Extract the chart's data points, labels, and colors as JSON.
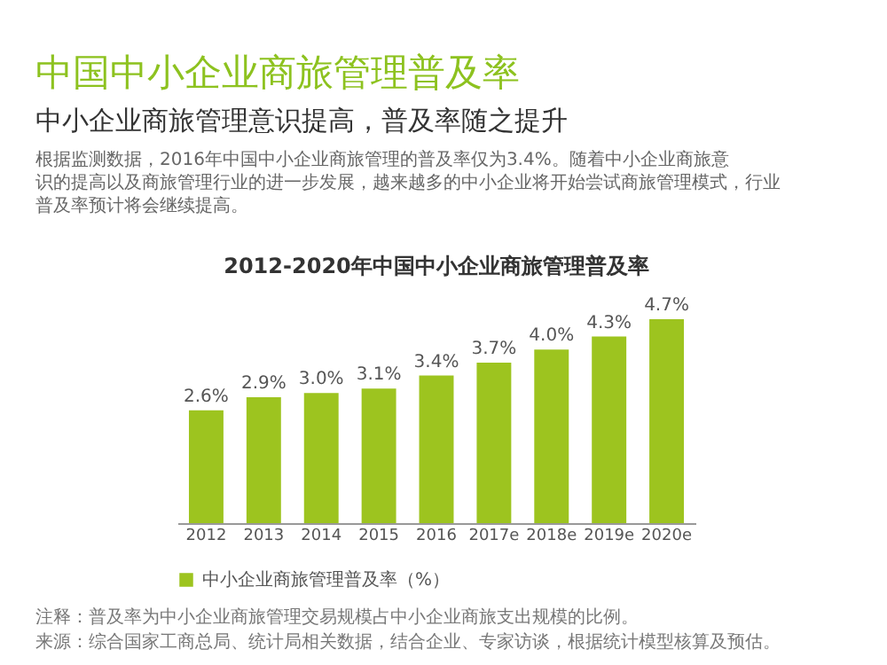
{
  "chart_data": {
    "type": "bar",
    "title": "中国中小企业商旅管理普及率",
    "subtitle": "中小企业商旅管理意识提高，普及率随之提升",
    "annotations": [
      "根据监测数据，2016年中国中小企业商旅管理的普及率仅为3.4%。随着中小企业商旅意识的提高以及商旅管理行业的进一步发展，越来越多的中小企业将开始尝试商旅管理模式，行业普及率预计将会继续提高。",
      "2012-2020年中国中小企业商旅管理普及率",
      "注释：普及率为中小企业商旅管理交易规模占中小企业商旅支出规模的比例。",
      "来源：综合国家工商总局、统计局相关数据，结合企业、专家访谈，根据统计模型核算及预估。"
    ],
    "categories": [
      "2012",
      "2013",
      "2014",
      "2015",
      "2016",
      "2017e",
      "2018e",
      "2019e",
      "2020e"
    ],
    "series": [
      {
        "name": "中小企业商旅管理普及率（%）",
        "color": "#9dc41f",
        "values": [
          2.6,
          2.9,
          3.0,
          3.1,
          3.4,
          3.7,
          4.0,
          4.3,
          4.7
        ],
        "value_labels": [
          "2.6%",
          "2.9%",
          "3.0%",
          "3.1%",
          "3.4%",
          "3.7%",
          "4.0%",
          "4.3%",
          "4.7%"
        ]
      }
    ],
    "legend": "bottom"
  }
}
